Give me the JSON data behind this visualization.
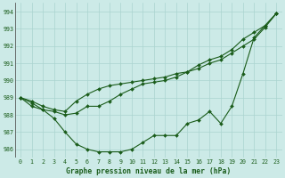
{
  "title": "Graphe pression niveau de la mer (hPa)",
  "background_color": "#cceae7",
  "grid_color": "#aad4d0",
  "line_color": "#1a5c1a",
  "x_labels": [
    "0",
    "1",
    "2",
    "3",
    "4",
    "5",
    "6",
    "7",
    "8",
    "9",
    "10",
    "11",
    "12",
    "13",
    "14",
    "15",
    "16",
    "17",
    "18",
    "19",
    "20",
    "21",
    "22",
    "23"
  ],
  "ylim": [
    985.5,
    994.5
  ],
  "yticks": [
    986,
    987,
    988,
    989,
    990,
    991,
    992,
    993,
    994
  ],
  "series_line1": [
    989.0,
    988.8,
    988.5,
    988.3,
    988.2,
    988.8,
    989.2,
    989.5,
    989.7,
    989.8,
    989.9,
    990.0,
    990.1,
    990.2,
    990.4,
    990.5,
    990.7,
    991.0,
    991.2,
    991.6,
    992.0,
    992.4,
    993.1,
    993.9
  ],
  "series_line2": [
    989.0,
    988.5,
    988.3,
    988.2,
    988.0,
    988.1,
    988.5,
    988.5,
    988.8,
    989.2,
    989.5,
    989.8,
    989.9,
    990.0,
    990.2,
    990.5,
    990.9,
    991.2,
    991.4,
    991.8,
    992.4,
    992.8,
    993.2,
    993.9
  ],
  "series_line3": [
    989.0,
    988.7,
    988.3,
    987.8,
    987.0,
    986.3,
    986.0,
    985.85,
    985.85,
    985.85,
    986.0,
    986.4,
    986.8,
    986.8,
    986.8,
    987.5,
    987.7,
    988.2,
    987.5,
    988.5,
    990.4,
    992.5,
    993.2,
    993.9
  ]
}
